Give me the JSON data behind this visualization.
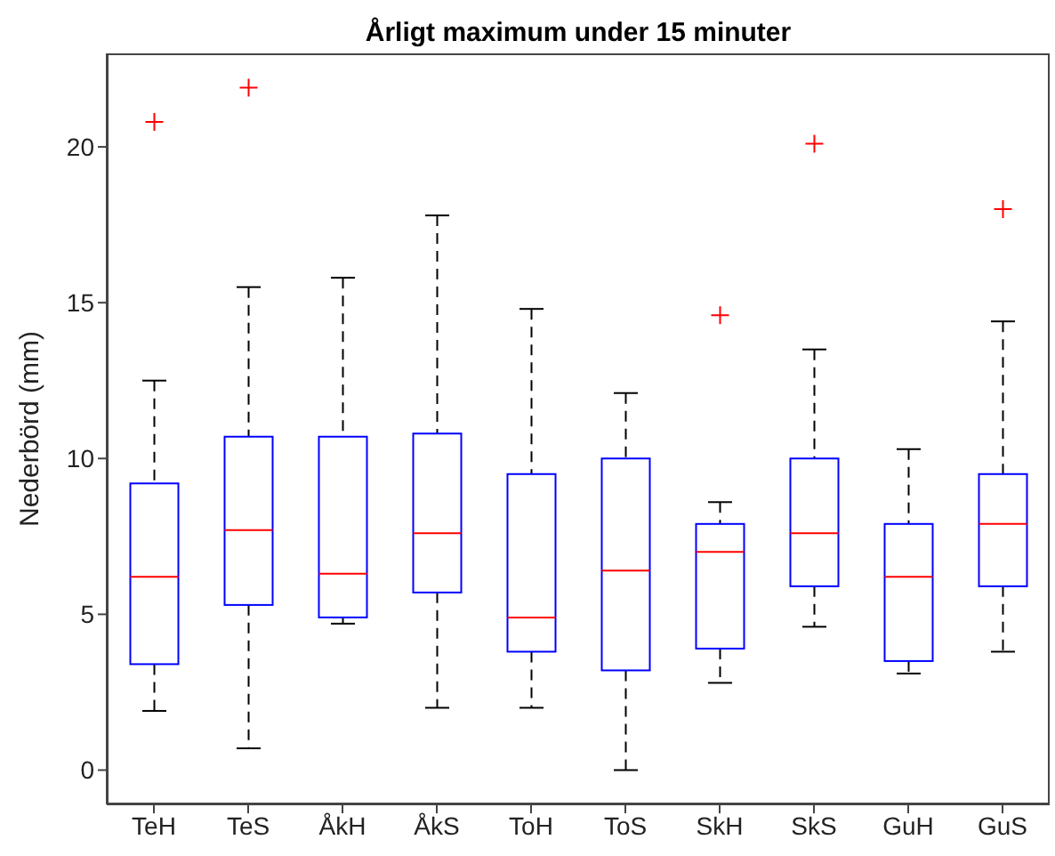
{
  "chart_data": {
    "type": "box",
    "title": "Årligt maximum under 15 minuter",
    "ylabel": "Nederbörd (mm)",
    "categories": [
      "TeH",
      "TeS",
      "ÅkH",
      "ÅkS",
      "ToH",
      "ToS",
      "SkH",
      "SkS",
      "GuH",
      "GuS"
    ],
    "color": "#0000ff",
    "ylim": [
      -1.1,
      23
    ],
    "yticks": [
      0,
      5,
      10,
      15,
      20
    ],
    "grid": false,
    "boxes": [
      {
        "low": 1.9,
        "q1": 3.4,
        "median": 6.2,
        "q3": 9.2,
        "high": 12.5,
        "outliers": [
          20.8
        ]
      },
      {
        "low": 0.7,
        "q1": 5.3,
        "median": 7.7,
        "q3": 10.7,
        "high": 15.5,
        "outliers": [
          21.9
        ]
      },
      {
        "low": 4.7,
        "q1": 4.9,
        "median": 6.3,
        "q3": 10.7,
        "high": 15.8
      },
      {
        "low": 2.0,
        "q1": 5.7,
        "median": 7.6,
        "q3": 10.8,
        "high": 17.8
      },
      {
        "low": 2.0,
        "q1": 3.8,
        "median": 4.9,
        "q3": 9.5,
        "high": 14.8
      },
      {
        "low": 0.0,
        "q1": 3.2,
        "median": 6.4,
        "q3": 10.0,
        "high": 12.1
      },
      {
        "low": 2.8,
        "q1": 3.9,
        "median": 7.0,
        "q3": 7.9,
        "high": 8.6,
        "outliers": [
          14.6
        ]
      },
      {
        "low": 4.6,
        "q1": 5.9,
        "median": 7.6,
        "q3": 10.0,
        "high": 13.5,
        "outliers": [
          20.1
        ]
      },
      {
        "low": 3.1,
        "q1": 3.5,
        "median": 6.2,
        "q3": 7.9,
        "high": 10.3
      },
      {
        "low": 3.8,
        "q1": 5.9,
        "median": 7.9,
        "q3": 9.5,
        "high": 14.4,
        "outliers": [
          18.0
        ]
      }
    ]
  }
}
